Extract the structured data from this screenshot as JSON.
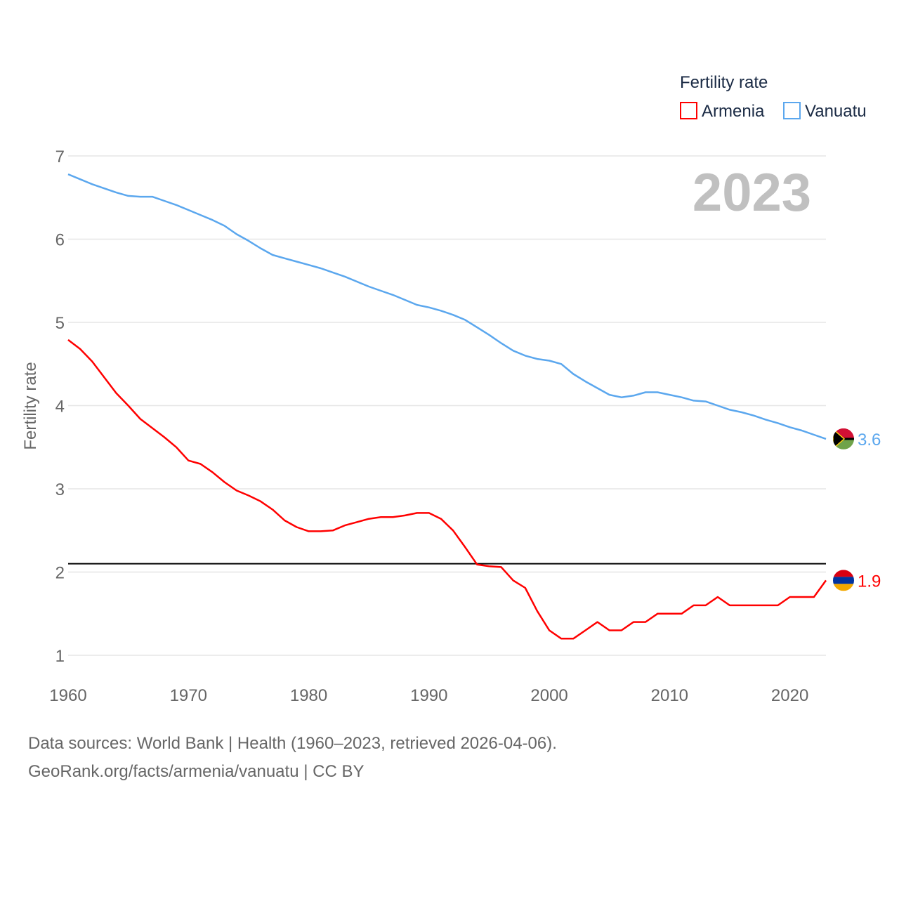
{
  "chart_data": {
    "type": "line",
    "title": "",
    "year_label": "2023",
    "ylabel": "Fertility rate",
    "xlabel": "",
    "legend": {
      "title": "Fertility rate",
      "placement": "top-right"
    },
    "xlim": [
      1960,
      2023
    ],
    "ylim": [
      1,
      7
    ],
    "yticks": [
      1,
      2,
      3,
      4,
      5,
      6,
      7
    ],
    "xticks": [
      1960,
      1970,
      1980,
      1990,
      2000,
      2010,
      2020
    ],
    "grid": true,
    "reference_line": 2.1,
    "x_start": 1960,
    "series": [
      {
        "name": "Armenia",
        "color": "#ff0000",
        "end_label": "1.9",
        "flag": "armenia-flag",
        "values": [
          4.79,
          4.68,
          4.53,
          4.34,
          4.15,
          4.0,
          3.84,
          3.73,
          3.62,
          3.5,
          3.34,
          3.3,
          3.2,
          3.08,
          2.98,
          2.92,
          2.85,
          2.75,
          2.62,
          2.54,
          2.49,
          2.49,
          2.5,
          2.56,
          2.6,
          2.64,
          2.66,
          2.66,
          2.68,
          2.71,
          2.71,
          2.64,
          2.5,
          2.3,
          2.09,
          2.07,
          2.06,
          1.9,
          1.81,
          1.53,
          1.3,
          1.2,
          1.2,
          1.3,
          1.4,
          1.3,
          1.3,
          1.4,
          1.4,
          1.5,
          1.5,
          1.5,
          1.6,
          1.6,
          1.7,
          1.6,
          1.6,
          1.6,
          1.6,
          1.6,
          1.7,
          1.7,
          1.7,
          1.9
        ]
      },
      {
        "name": "Vanuatu",
        "color": "#5ba7ee",
        "end_label": "3.6",
        "flag": "vanuatu-flag",
        "values": [
          6.78,
          6.72,
          6.66,
          6.61,
          6.56,
          6.52,
          6.51,
          6.51,
          6.46,
          6.41,
          6.35,
          6.29,
          6.23,
          6.16,
          6.06,
          5.98,
          5.89,
          5.81,
          5.77,
          5.73,
          5.69,
          5.65,
          5.6,
          5.55,
          5.49,
          5.43,
          5.38,
          5.33,
          5.27,
          5.21,
          5.18,
          5.14,
          5.09,
          5.03,
          4.94,
          4.85,
          4.75,
          4.66,
          4.6,
          4.56,
          4.54,
          4.5,
          4.38,
          4.29,
          4.21,
          4.13,
          4.1,
          4.12,
          4.16,
          4.16,
          4.13,
          4.1,
          4.06,
          4.05,
          4.0,
          3.95,
          3.92,
          3.88,
          3.83,
          3.79,
          3.74,
          3.7,
          3.65,
          3.6
        ]
      }
    ]
  },
  "footer": {
    "line1": "Data sources: World Bank | Health (1960–2023, retrieved 2026-04-06).",
    "line2": "GeoRank.org/facts/armenia/vanuatu | CC BY"
  }
}
